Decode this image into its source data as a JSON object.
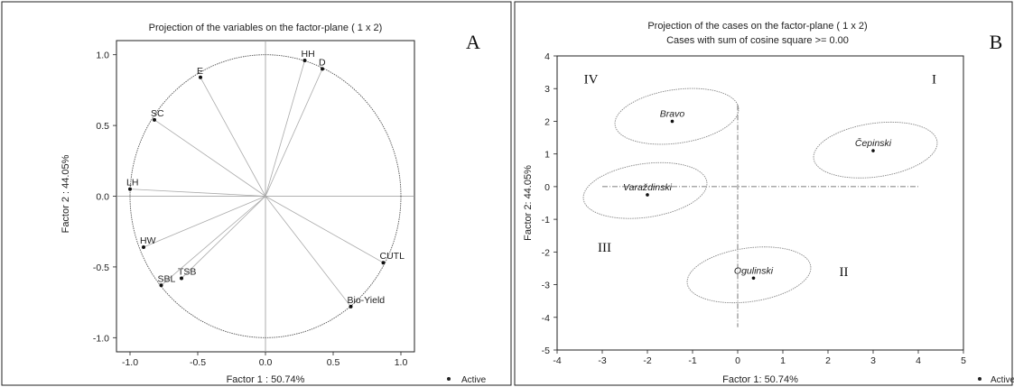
{
  "chart_data": [
    {
      "type": "scatter",
      "panel_label": "A",
      "title": "Projection of the variables on the factor-plane (  1 x  2)",
      "xlabel": "Factor 1 : 50.74%",
      "ylabel": "Factor 2 : 44.05%",
      "xlim": [
        -1.1,
        1.1
      ],
      "ylim": [
        -1.1,
        1.1
      ],
      "x_ticks": [
        "-1.0",
        "-0.5",
        "0.0",
        "0.5",
        "1.0"
      ],
      "y_ticks": [
        "1.0",
        "0.5",
        "0.0",
        "-0.5",
        "-1.0"
      ],
      "legend": "Active",
      "unit_circle": true,
      "points": [
        {
          "label": "HH",
          "x": 0.29,
          "y": 0.96
        },
        {
          "label": "D",
          "x": 0.42,
          "y": 0.9
        },
        {
          "label": "E",
          "x": -0.48,
          "y": 0.84
        },
        {
          "label": "SC",
          "x": -0.82,
          "y": 0.54
        },
        {
          "label": "LH",
          "x": -1.0,
          "y": 0.05
        },
        {
          "label": "HW",
          "x": -0.9,
          "y": -0.36
        },
        {
          "label": "TSB",
          "x": -0.62,
          "y": -0.58
        },
        {
          "label": "SBL",
          "x": -0.77,
          "y": -0.63
        },
        {
          "label": "CUTL",
          "x": 0.87,
          "y": -0.47
        },
        {
          "label": "Bio-Yield",
          "x": 0.63,
          "y": -0.78
        }
      ]
    },
    {
      "type": "scatter",
      "panel_label": "B",
      "title": "Projection of the cases on the factor-plane (  1 x  2)",
      "subtitle": "Cases with sum of cosine square >=  0.00",
      "xlabel": "Factor 1: 50.74%",
      "ylabel": "Factor 2: 44.05%",
      "xlim": [
        -4,
        5
      ],
      "ylim": [
        -5,
        4
      ],
      "x_ticks": [
        "-4",
        "-3",
        "-2",
        "-1",
        "0",
        "1",
        "2",
        "3",
        "4",
        "5"
      ],
      "y_ticks": [
        "4",
        "3",
        "2",
        "1",
        "0",
        "-1",
        "-2",
        "-3",
        "-4",
        "-5"
      ],
      "legend": "Active",
      "quadrants": [
        "I",
        "II",
        "III",
        "IV"
      ],
      "points": [
        {
          "label": "Bravo",
          "x": -1.45,
          "y": 2.0
        },
        {
          "label": "Čepinski",
          "x": 3.0,
          "y": 1.1
        },
        {
          "label": "Varaždinski",
          "x": -2.0,
          "y": -0.25
        },
        {
          "label": "Ogulinski",
          "x": 0.35,
          "y": -2.8
        }
      ]
    }
  ]
}
